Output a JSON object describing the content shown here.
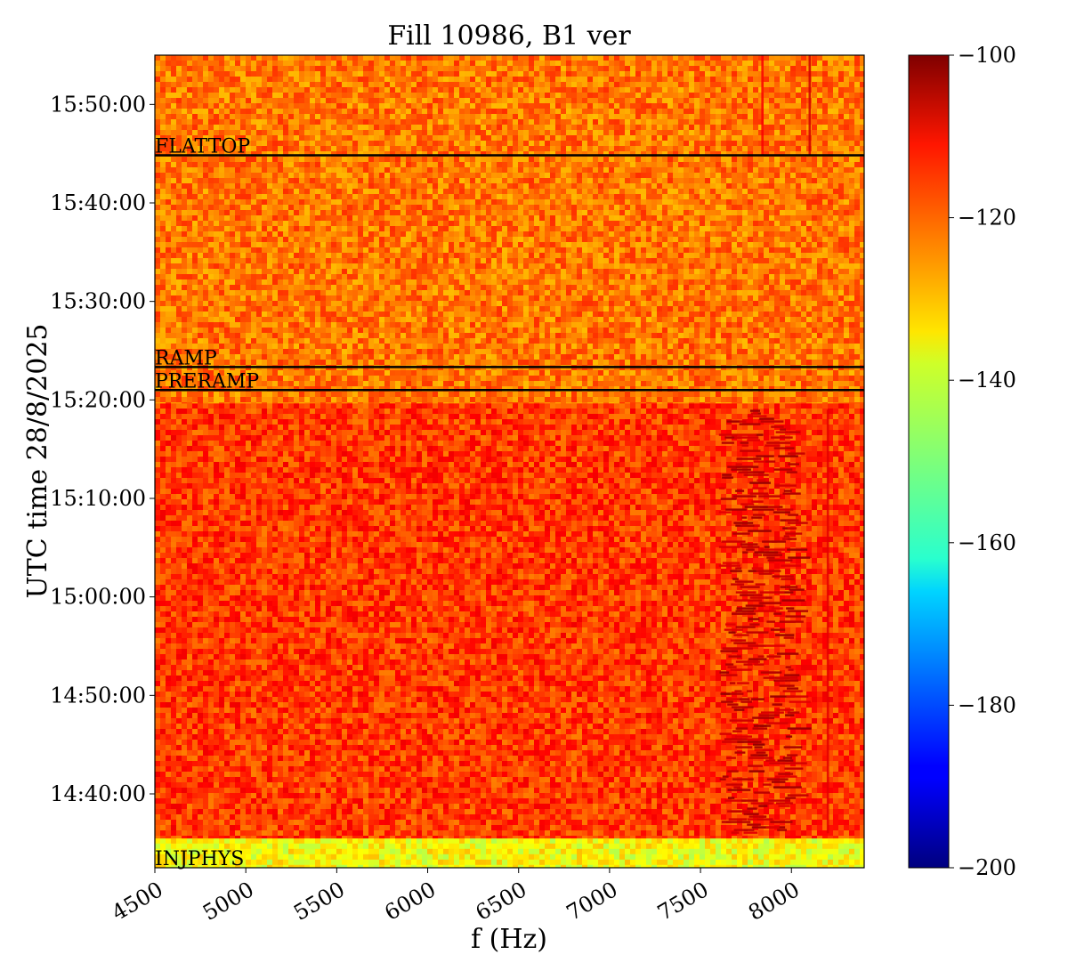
{
  "chart_data": {
    "type": "heatmap",
    "title": "Fill 10986, B1 ver",
    "xlabel": "f (Hz)",
    "ylabel": "UTC time 28/8/2025",
    "x_ticks": [
      {
        "value": 4500,
        "label": "4500"
      },
      {
        "value": 5000,
        "label": "5000"
      },
      {
        "value": 5500,
        "label": "5500"
      },
      {
        "value": 6000,
        "label": "6000"
      },
      {
        "value": 6500,
        "label": "6500"
      },
      {
        "value": 7000,
        "label": "7000"
      },
      {
        "value": 7500,
        "label": "7500"
      },
      {
        "value": 8000,
        "label": "8000"
      }
    ],
    "xlim": [
      4500,
      8400
    ],
    "y_ticks": [
      {
        "value": "14:40:00",
        "label": "14:40:00"
      },
      {
        "value": "14:50:00",
        "label": "14:50:00"
      },
      {
        "value": "15:00:00",
        "label": "15:00:00"
      },
      {
        "value": "15:10:00",
        "label": "15:10:00"
      },
      {
        "value": "15:20:00",
        "label": "15:20:00"
      },
      {
        "value": "15:30:00",
        "label": "15:30:00"
      },
      {
        "value": "15:40:00",
        "label": "15:40:00"
      },
      {
        "value": "15:50:00",
        "label": "15:50:00"
      }
    ],
    "ylim": [
      "14:32:30",
      "15:55:00"
    ],
    "colorbar": {
      "colormap": "jet",
      "vmin": -200,
      "vmax": -100,
      "ticks": [
        {
          "value": -100,
          "label": "−100"
        },
        {
          "value": -120,
          "label": "−120"
        },
        {
          "value": -140,
          "label": "−140"
        },
        {
          "value": -160,
          "label": "−160"
        },
        {
          "value": -180,
          "label": "−180"
        },
        {
          "value": -200,
          "label": "−200"
        }
      ]
    },
    "regions": [
      {
        "from": "14:32:30",
        "to": "14:35:30",
        "approx_level": -138
      },
      {
        "from": "14:35:30",
        "to": "15:19:40",
        "approx_level": -118
      },
      {
        "from": "15:19:40",
        "to": "15:55:00",
        "approx_level": -124
      }
    ],
    "phase_markers": [
      {
        "label": "INJPHYS",
        "time": "14:32:30"
      },
      {
        "label": "PRERAMP",
        "time": "15:21:00"
      },
      {
        "label": "RAMP",
        "time": "15:23:20"
      },
      {
        "label": "FLATTOP",
        "time": "15:44:50"
      }
    ],
    "spectral_features": [
      {
        "f_from": 7600,
        "f_to": 8050,
        "time_from": "14:36:00",
        "time_to": "15:19:00",
        "approx_level": -106
      },
      {
        "f": 8200,
        "time_from": "14:36:00",
        "time_to": "15:19:00",
        "approx_level": -110
      },
      {
        "f": 8100,
        "time_from": "15:44:50",
        "time_to": "15:55:00",
        "approx_level": -108
      },
      {
        "f": 7840,
        "time_from": "15:44:50",
        "time_to": "15:55:00",
        "approx_level": -112
      }
    ]
  }
}
